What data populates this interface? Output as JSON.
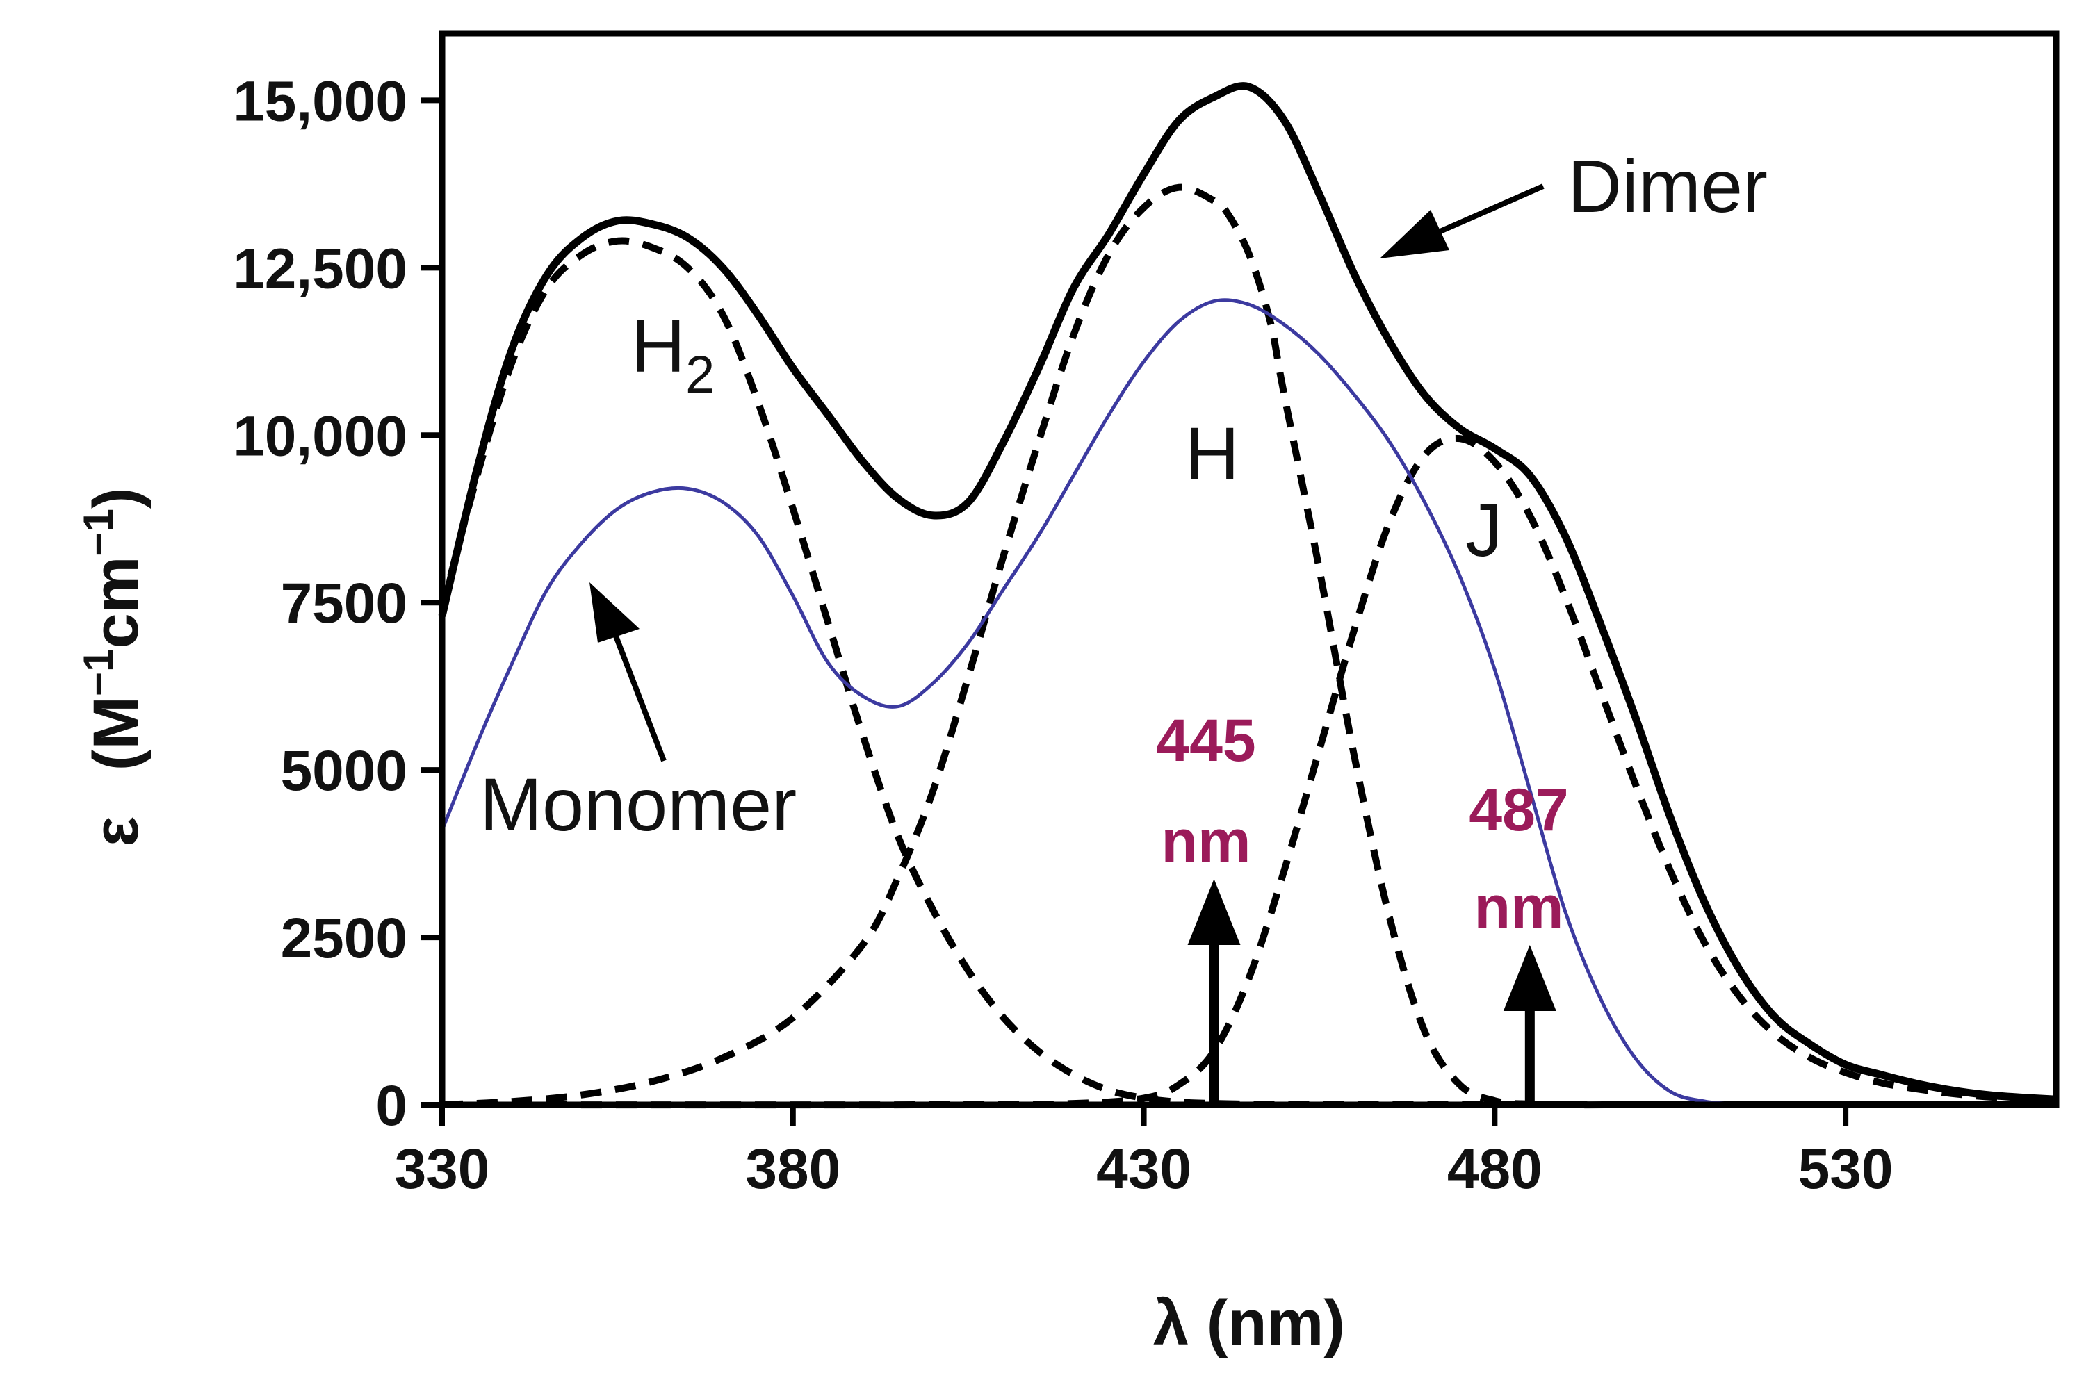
{
  "chart_data": {
    "type": "line",
    "title": "",
    "xlabel": "λ (nm)",
    "ylabel_prefix": "ε",
    "ylabel_unit": "(M",
    "ylabel_sup1": "−1",
    "ylabel_cm": "cm",
    "ylabel_sup2": "−1",
    "ylabel_close": ")",
    "xlim": [
      330,
      560
    ],
    "ylim": [
      0,
      16000
    ],
    "xticks": [
      330,
      380,
      430,
      480,
      530
    ],
    "xtick_labels": [
      "330",
      "380",
      "430",
      "480",
      "530"
    ],
    "yticks": [
      0,
      2500,
      5000,
      7500,
      10000,
      12500,
      15000
    ],
    "ytick_labels": [
      "0",
      "2500",
      "5000",
      "7500",
      "10,000",
      "12,500",
      "15,000"
    ],
    "grid": false,
    "series": [
      {
        "name": "Dimer",
        "style": "solid-thick",
        "color": "#000000",
        "x": [
          330,
          335,
          340,
          345,
          350,
          355,
          360,
          365,
          370,
          375,
          380,
          385,
          390,
          395,
          400,
          405,
          410,
          415,
          420,
          425,
          430,
          435,
          440,
          445,
          450,
          455,
          460,
          465,
          470,
          475,
          480,
          485,
          490,
          495,
          500,
          505,
          510,
          515,
          520,
          525,
          530,
          535,
          540,
          545,
          550,
          555,
          560
        ],
        "y": [
          7300,
          9500,
          11300,
          12400,
          12950,
          13200,
          13150,
          12950,
          12500,
          11800,
          11000,
          10300,
          9600,
          9050,
          8800,
          9000,
          9900,
          11000,
          12200,
          13000,
          13900,
          14700,
          15050,
          15200,
          14700,
          13600,
          12400,
          11400,
          10600,
          10100,
          9800,
          9400,
          8500,
          7200,
          5800,
          4300,
          3000,
          2000,
          1300,
          900,
          600,
          450,
          320,
          220,
          150,
          110,
          80
        ]
      },
      {
        "name": "H2",
        "style": "dashed",
        "color": "#000000",
        "x": [
          330,
          335,
          340,
          345,
          350,
          355,
          360,
          365,
          370,
          375,
          380,
          385,
          390,
          395,
          400,
          405,
          410,
          415,
          420,
          425,
          430,
          435,
          440,
          445,
          450,
          455,
          460,
          470,
          480,
          500,
          530,
          560
        ],
        "y": [
          7400,
          9400,
          11100,
          12200,
          12700,
          12900,
          12800,
          12500,
          11800,
          10500,
          8900,
          7200,
          5500,
          4000,
          2900,
          2000,
          1300,
          800,
          450,
          220,
          100,
          40,
          20,
          10,
          5,
          3,
          2,
          1,
          0,
          0,
          0,
          0
        ]
      },
      {
        "name": "H",
        "style": "dashed",
        "color": "#000000",
        "x": [
          330,
          340,
          350,
          360,
          370,
          380,
          390,
          395,
          400,
          405,
          410,
          415,
          420,
          425,
          430,
          435,
          440,
          442,
          445,
          448,
          450,
          455,
          460,
          465,
          470,
          475,
          480,
          485,
          490,
          500,
          530,
          560
        ],
        "y": [
          0,
          50,
          150,
          350,
          700,
          1300,
          2400,
          3400,
          4700,
          6400,
          8200,
          9900,
          11500,
          12700,
          13400,
          13700,
          13500,
          13300,
          12700,
          11700,
          10600,
          8000,
          5200,
          2800,
          1100,
          300,
          60,
          10,
          0,
          0,
          0,
          0
        ]
      },
      {
        "name": "J",
        "style": "dashed",
        "color": "#000000",
        "x": [
          330,
          400,
          420,
          430,
          435,
          440,
          445,
          450,
          455,
          460,
          465,
          470,
          475,
          480,
          485,
          490,
          495,
          500,
          505,
          510,
          515,
          520,
          525,
          530,
          535,
          540,
          545,
          550,
          555,
          560
        ],
        "y": [
          0,
          0,
          20,
          100,
          300,
          800,
          1900,
          3500,
          5300,
          7100,
          8700,
          9700,
          9950,
          9600,
          8800,
          7600,
          6200,
          4800,
          3500,
          2400,
          1600,
          1050,
          700,
          480,
          330,
          240,
          170,
          120,
          90,
          60
        ]
      },
      {
        "name": "Monomer",
        "style": "solid-thin",
        "color": "#3c3aa0",
        "x": [
          330,
          335,
          340,
          345,
          350,
          355,
          360,
          365,
          370,
          375,
          380,
          385,
          390,
          395,
          400,
          405,
          410,
          415,
          420,
          425,
          430,
          435,
          440,
          445,
          450,
          455,
          460,
          465,
          470,
          475,
          480,
          485,
          490,
          495,
          500,
          505,
          510,
          515,
          520
        ],
        "y": [
          4100,
          5400,
          6600,
          7700,
          8400,
          8900,
          9150,
          9200,
          9000,
          8500,
          7600,
          6600,
          6100,
          5950,
          6300,
          6900,
          7700,
          8500,
          9400,
          10300,
          11100,
          11700,
          12000,
          11950,
          11650,
          11200,
          10600,
          9900,
          9000,
          7900,
          6500,
          4700,
          2900,
          1600,
          700,
          200,
          50,
          10,
          0
        ]
      }
    ],
    "annotations": {
      "dimer_label": "Dimer",
      "monomer_label": "Monomer",
      "h2_label_main": "H",
      "h2_label_sub": "2",
      "h_label": "H",
      "j_label": "J",
      "marker1_value": "445",
      "marker1_unit": "nm",
      "marker2_value": "487",
      "marker2_unit": "nm",
      "marker_color": "#9b1b5a",
      "marker1_x": 440,
      "marker2_x": 485
    }
  }
}
